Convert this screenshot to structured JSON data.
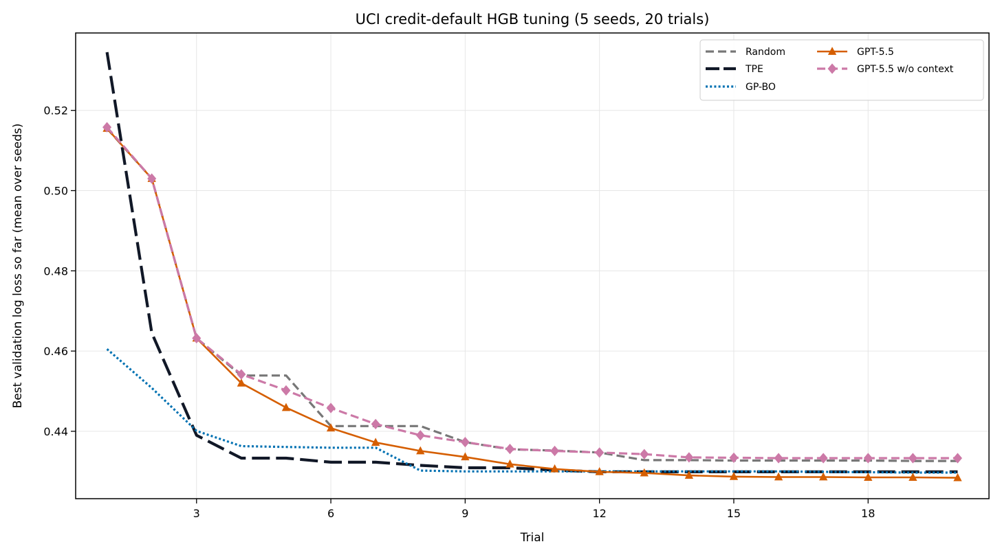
{
  "chart_data": {
    "type": "line",
    "title": "UCI credit-default HGB tuning (5 seeds, 20 trials)",
    "xlabel": "Trial",
    "ylabel": "Best validation log loss so far (mean over seeds)",
    "xlim": [
      0.3,
      20.7
    ],
    "ylim": [
      0.4232,
      0.5393
    ],
    "xticks": [
      3,
      6,
      9,
      12,
      15,
      18
    ],
    "yticks": [
      0.44,
      0.46,
      0.48,
      0.5,
      0.52
    ],
    "ytick_labels": [
      "0.44",
      "0.46",
      "0.48",
      "0.50",
      "0.52"
    ],
    "grid": true,
    "legend_position": "top-right",
    "x": [
      1,
      2,
      3,
      4,
      5,
      6,
      7,
      8,
      9,
      10,
      11,
      12,
      13,
      14,
      15,
      16,
      17,
      18,
      19,
      20
    ],
    "series": [
      {
        "name": "Random",
        "color": "#777777",
        "style": "dashed",
        "marker": "none",
        "values": [
          0.5155,
          0.503,
          0.4632,
          0.4539,
          0.4539,
          0.4413,
          0.4413,
          0.4413,
          0.4373,
          0.4355,
          0.4352,
          0.4347,
          0.4328,
          0.4328,
          0.4327,
          0.4327,
          0.4327,
          0.4327,
          0.4326,
          0.4326
        ]
      },
      {
        "name": "TPE",
        "color": "#111827",
        "style": "longdash",
        "marker": "none",
        "values": [
          0.5345,
          0.4645,
          0.439,
          0.4333,
          0.4333,
          0.4323,
          0.4323,
          0.4315,
          0.4309,
          0.4309,
          0.4303,
          0.4299,
          0.4299,
          0.4299,
          0.4299,
          0.4299,
          0.4299,
          0.4299,
          0.4299,
          0.4299
        ]
      },
      {
        "name": "GP-BO",
        "color": "#0071b2",
        "style": "dotted",
        "marker": "none",
        "values": [
          0.4605,
          0.4508,
          0.4401,
          0.4363,
          0.4361,
          0.4359,
          0.4359,
          0.4302,
          0.43,
          0.43,
          0.43,
          0.43,
          0.43,
          0.43,
          0.43,
          0.43,
          0.4299,
          0.4298,
          0.4297,
          0.4297
        ]
      },
      {
        "name": "GPT-5.5",
        "color": "#d55e00",
        "style": "solid",
        "marker": "triangle",
        "values": [
          0.5155,
          0.503,
          0.4632,
          0.452,
          0.4459,
          0.4408,
          0.4372,
          0.4351,
          0.4336,
          0.4318,
          0.4306,
          0.4299,
          0.4296,
          0.429,
          0.4287,
          0.4286,
          0.4286,
          0.4285,
          0.4285,
          0.4284
        ]
      },
      {
        "name": "GPT-5.5 w/o context",
        "color": "#cc79a7",
        "style": "dashed",
        "marker": "diamond",
        "values": [
          0.5158,
          0.503,
          0.4632,
          0.4542,
          0.4502,
          0.4458,
          0.4418,
          0.439,
          0.4373,
          0.4356,
          0.4351,
          0.4347,
          0.4343,
          0.4335,
          0.4334,
          0.4333,
          0.4333,
          0.4333,
          0.4333,
          0.4333
        ]
      }
    ]
  }
}
